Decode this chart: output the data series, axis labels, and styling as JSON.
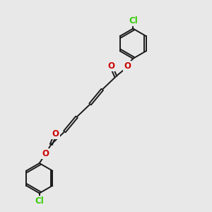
{
  "bg_color": "#e8e8e8",
  "bond_color": "#1a1a1a",
  "oxygen_color": "#cc0000",
  "chlorine_color": "#33cc00",
  "lw": 1.4,
  "lw_thin": 1.0,
  "dbo": 0.055,
  "figsize": [
    3.0,
    3.0
  ],
  "dpi": 100,
  "xlim": [
    0,
    10
  ],
  "ylim": [
    0,
    10
  ],
  "ring_r": 0.72,
  "font_size": 8.5
}
